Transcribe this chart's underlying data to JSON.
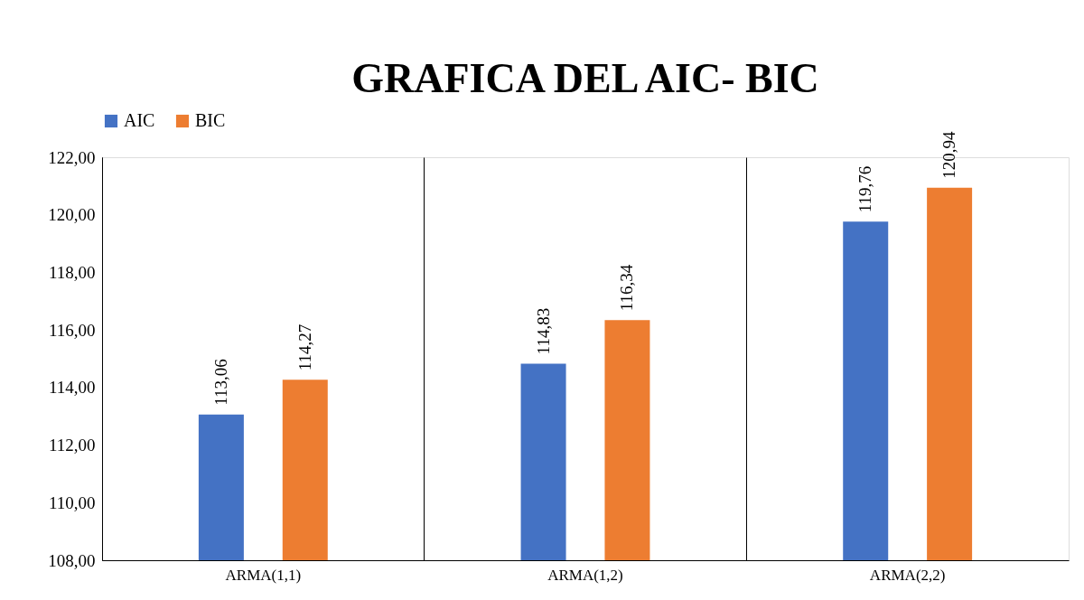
{
  "chart_data": {
    "type": "bar",
    "title": "GRAFICA DEL AIC- BIC",
    "categories": [
      "ARMA(1,1)",
      "ARMA(1,2)",
      "ARMA(2,2)"
    ],
    "series": [
      {
        "name": "AIC",
        "color": "#4472c4",
        "values": [
          113.06,
          114.83,
          119.76
        ],
        "value_labels": [
          "113,06",
          "114,83",
          "119,76"
        ]
      },
      {
        "name": "BIC",
        "color": "#ed7d31",
        "values": [
          114.27,
          116.34,
          120.94
        ],
        "value_labels": [
          "114,27",
          "116,34",
          "120,94"
        ]
      }
    ],
    "ylim": [
      108,
      122
    ],
    "yticks": [
      {
        "value": 108,
        "label": "108,00"
      },
      {
        "value": 110,
        "label": "110,00"
      },
      {
        "value": 112,
        "label": "112,00"
      },
      {
        "value": 114,
        "label": "114,00"
      },
      {
        "value": 116,
        "label": "116,00"
      },
      {
        "value": 118,
        "label": "118,00"
      },
      {
        "value": 120,
        "label": "120,00"
      },
      {
        "value": 122,
        "label": "122,00"
      }
    ],
    "grid": "x",
    "legend": "top"
  }
}
